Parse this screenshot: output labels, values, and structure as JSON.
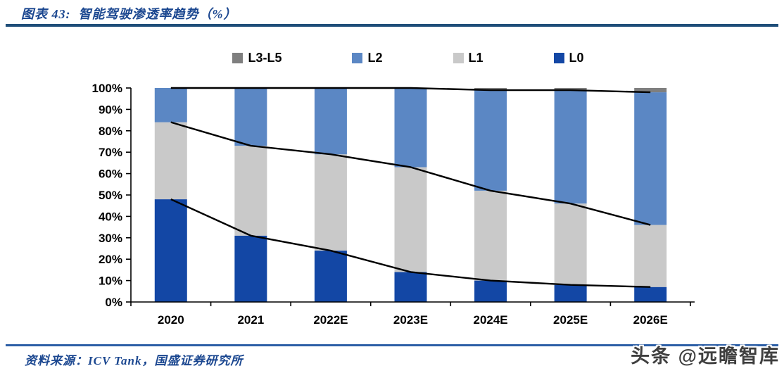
{
  "figure": {
    "title": "图表 43:  智能驾驶渗透率趋势（%）"
  },
  "chart_data": {
    "type": "bar",
    "stacked": true,
    "stack_total": 100,
    "title": "智能驾驶渗透率趋势（%）",
    "categories": [
      "2020",
      "2021",
      "2022E",
      "2023E",
      "2024E",
      "2025E",
      "2026E"
    ],
    "series": [
      {
        "name": "L0",
        "color": "#1347A5",
        "values": [
          48,
          31,
          24,
          14,
          10,
          8,
          7
        ]
      },
      {
        "name": "L1",
        "color": "#C9C9C9",
        "values": [
          36,
          42,
          45,
          49,
          42,
          38,
          29
        ]
      },
      {
        "name": "L2",
        "color": "#5B87C4",
        "values": [
          16,
          27,
          31,
          37,
          47,
          53,
          62
        ]
      },
      {
        "name": "L3-L5",
        "color": "#7F7F7F",
        "values": [
          0,
          0,
          0,
          0,
          1,
          1,
          2
        ]
      }
    ],
    "overlay_lines": {
      "description": "black polylines tracing cumulative stack boundaries L0, L0+L1, L0+L1+L2",
      "color": "#000000"
    },
    "xlabel": "",
    "ylabel": "",
    "ylim": [
      0,
      100
    ],
    "ytick_step": 10,
    "ytick_labels": [
      "0%",
      "10%",
      "20%",
      "30%",
      "40%",
      "50%",
      "60%",
      "70%",
      "80%",
      "90%",
      "100%"
    ],
    "legend_position": "top",
    "legend_order": [
      "L3-L5",
      "L2",
      "L1",
      "L0"
    ],
    "grid": false
  },
  "footer": {
    "source": "资料来源：ICV Tank，国盛证券研究所"
  },
  "watermark": {
    "text": "头条 @远瞻智库"
  }
}
